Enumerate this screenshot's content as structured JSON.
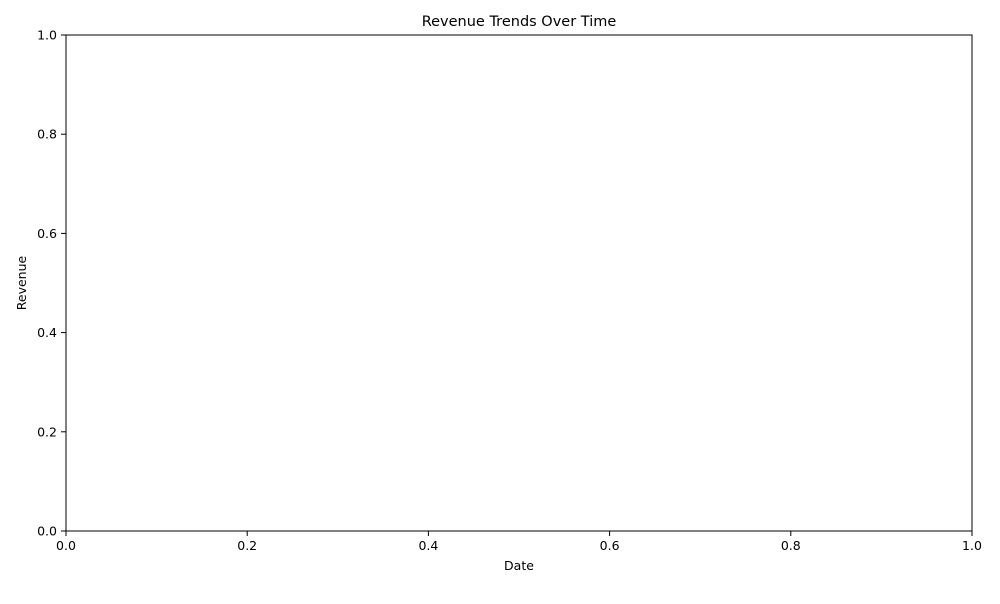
{
  "chart_data": {
    "type": "line",
    "title": "Revenue Trends Over Time",
    "xlabel": "Date",
    "ylabel": "Revenue",
    "xlim": [
      0.0,
      1.0
    ],
    "ylim": [
      0.0,
      1.0
    ],
    "xticks": [
      "0.0",
      "0.2",
      "0.4",
      "0.6",
      "0.8",
      "1.0"
    ],
    "yticks": [
      "0.0",
      "0.2",
      "0.4",
      "0.6",
      "0.8",
      "1.0"
    ],
    "series": [],
    "grid": false,
    "legend": "none"
  }
}
